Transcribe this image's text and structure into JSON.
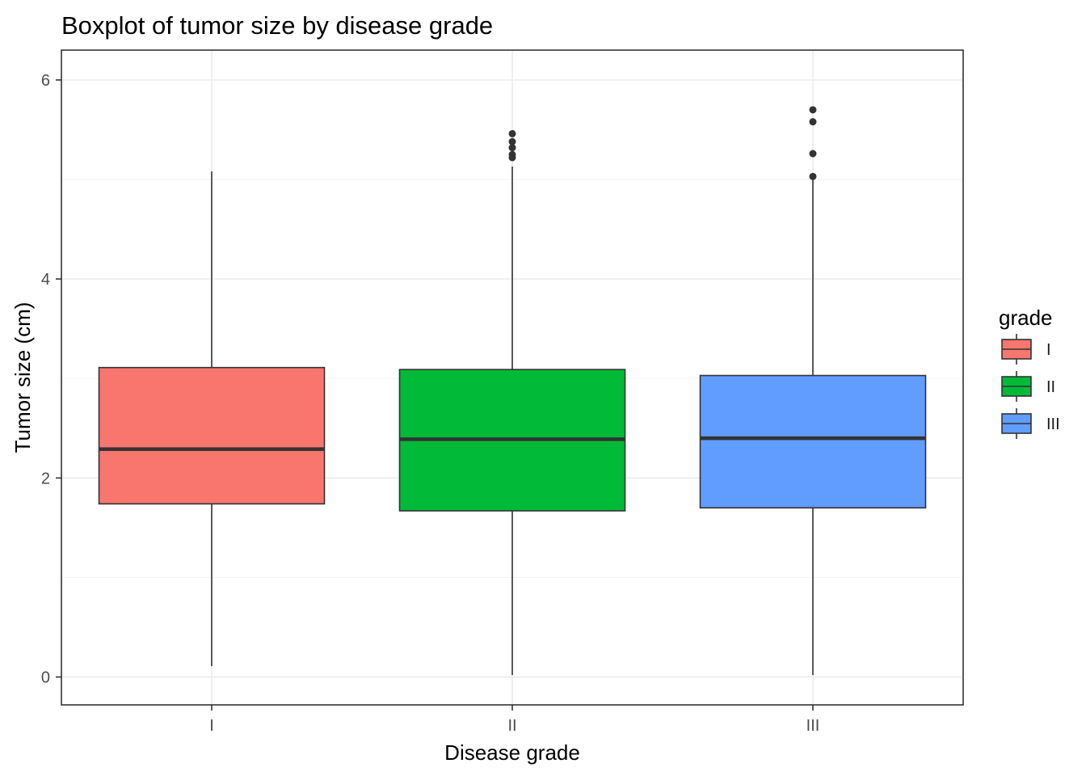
{
  "chart_data": {
    "type": "boxplot",
    "title": "Boxplot of tumor size by disease grade",
    "xlabel": "Disease grade",
    "ylabel": "Tumor size (cm)",
    "ylim": [
      -0.28,
      6.3
    ],
    "yticks": [
      0,
      2,
      4,
      6
    ],
    "yticks_minor": [
      1,
      3,
      5
    ],
    "categories": [
      "I",
      "II",
      "III"
    ],
    "legend": {
      "title": "grade",
      "position": "right"
    },
    "grid": true,
    "series": [
      {
        "name": "I",
        "color": "#F8766D",
        "min": 0.11,
        "q1": 1.74,
        "median": 2.29,
        "q3": 3.11,
        "max": 5.08,
        "outliers": []
      },
      {
        "name": "II",
        "color": "#00BA38",
        "min": 0.02,
        "q1": 1.67,
        "median": 2.39,
        "q3": 3.09,
        "max": 5.13,
        "outliers": [
          5.22,
          5.25,
          5.32,
          5.38,
          5.46
        ]
      },
      {
        "name": "III",
        "color": "#619CFF",
        "min": 0.02,
        "q1": 1.7,
        "median": 2.4,
        "q3": 3.03,
        "max": 5.0,
        "outliers": [
          5.03,
          5.26,
          5.58,
          5.7
        ]
      }
    ]
  }
}
